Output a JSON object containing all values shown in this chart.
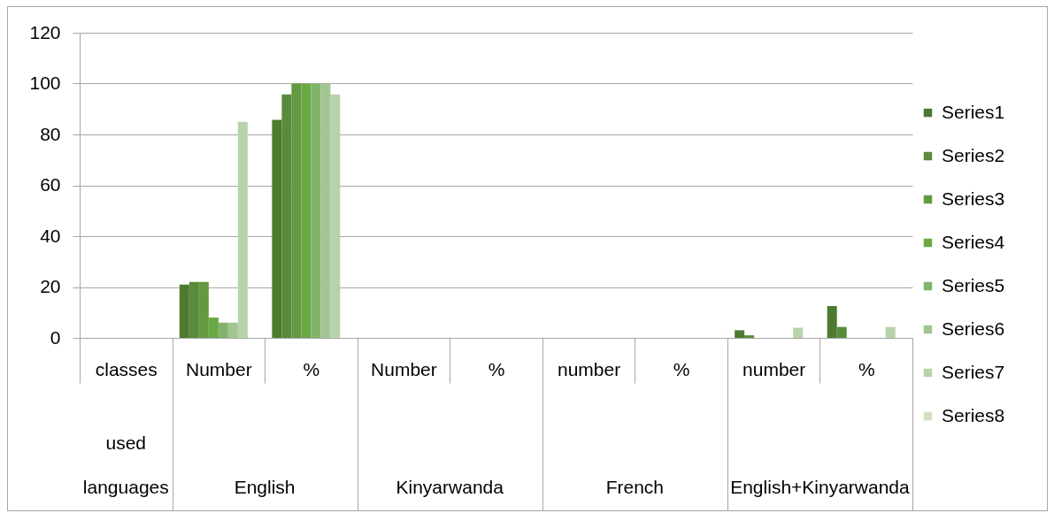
{
  "chart_data": {
    "type": "bar",
    "categories": [
      "classes",
      "Number",
      "%",
      "Number",
      "%",
      "number",
      "%",
      "number",
      "%"
    ],
    "series": [
      {
        "name": "Series1",
        "color": "#4e7a30",
        "values": [
          null,
          21,
          85.7,
          null,
          null,
          null,
          null,
          3,
          12.5
        ]
      },
      {
        "name": "Series2",
        "color": "#598b3a",
        "values": [
          null,
          22,
          95.7,
          null,
          null,
          null,
          null,
          1,
          4.3
        ]
      },
      {
        "name": "Series3",
        "color": "#639a41",
        "values": [
          null,
          22,
          100,
          null,
          null,
          null,
          null,
          null,
          null
        ]
      },
      {
        "name": "Series4",
        "color": "#6aa844",
        "values": [
          null,
          8,
          100,
          null,
          null,
          null,
          null,
          null,
          null
        ]
      },
      {
        "name": "Series5",
        "color": "#82b36b",
        "values": [
          null,
          6,
          100,
          null,
          null,
          null,
          null,
          null,
          null
        ]
      },
      {
        "name": "Series6",
        "color": "#a2c593",
        "values": [
          null,
          6,
          100,
          null,
          null,
          null,
          null,
          null,
          null
        ]
      },
      {
        "name": "Series7",
        "color": "#b7d3ab",
        "values": [
          null,
          85,
          95.7,
          null,
          null,
          null,
          null,
          4,
          4.3
        ]
      },
      {
        "name": "Series8",
        "color": "#cde0c4",
        "values": [
          null,
          null,
          null,
          null,
          null,
          null,
          null,
          null,
          null
        ]
      }
    ],
    "ylim": [
      0,
      120
    ],
    "yticks": [
      0,
      20,
      40,
      60,
      80,
      100,
      120
    ],
    "grid": "y",
    "legend": "right",
    "annotations": [
      "used",
      "languages",
      "English",
      "Kinyarwanda",
      "French",
      "English+Kinyarwanda"
    ]
  }
}
